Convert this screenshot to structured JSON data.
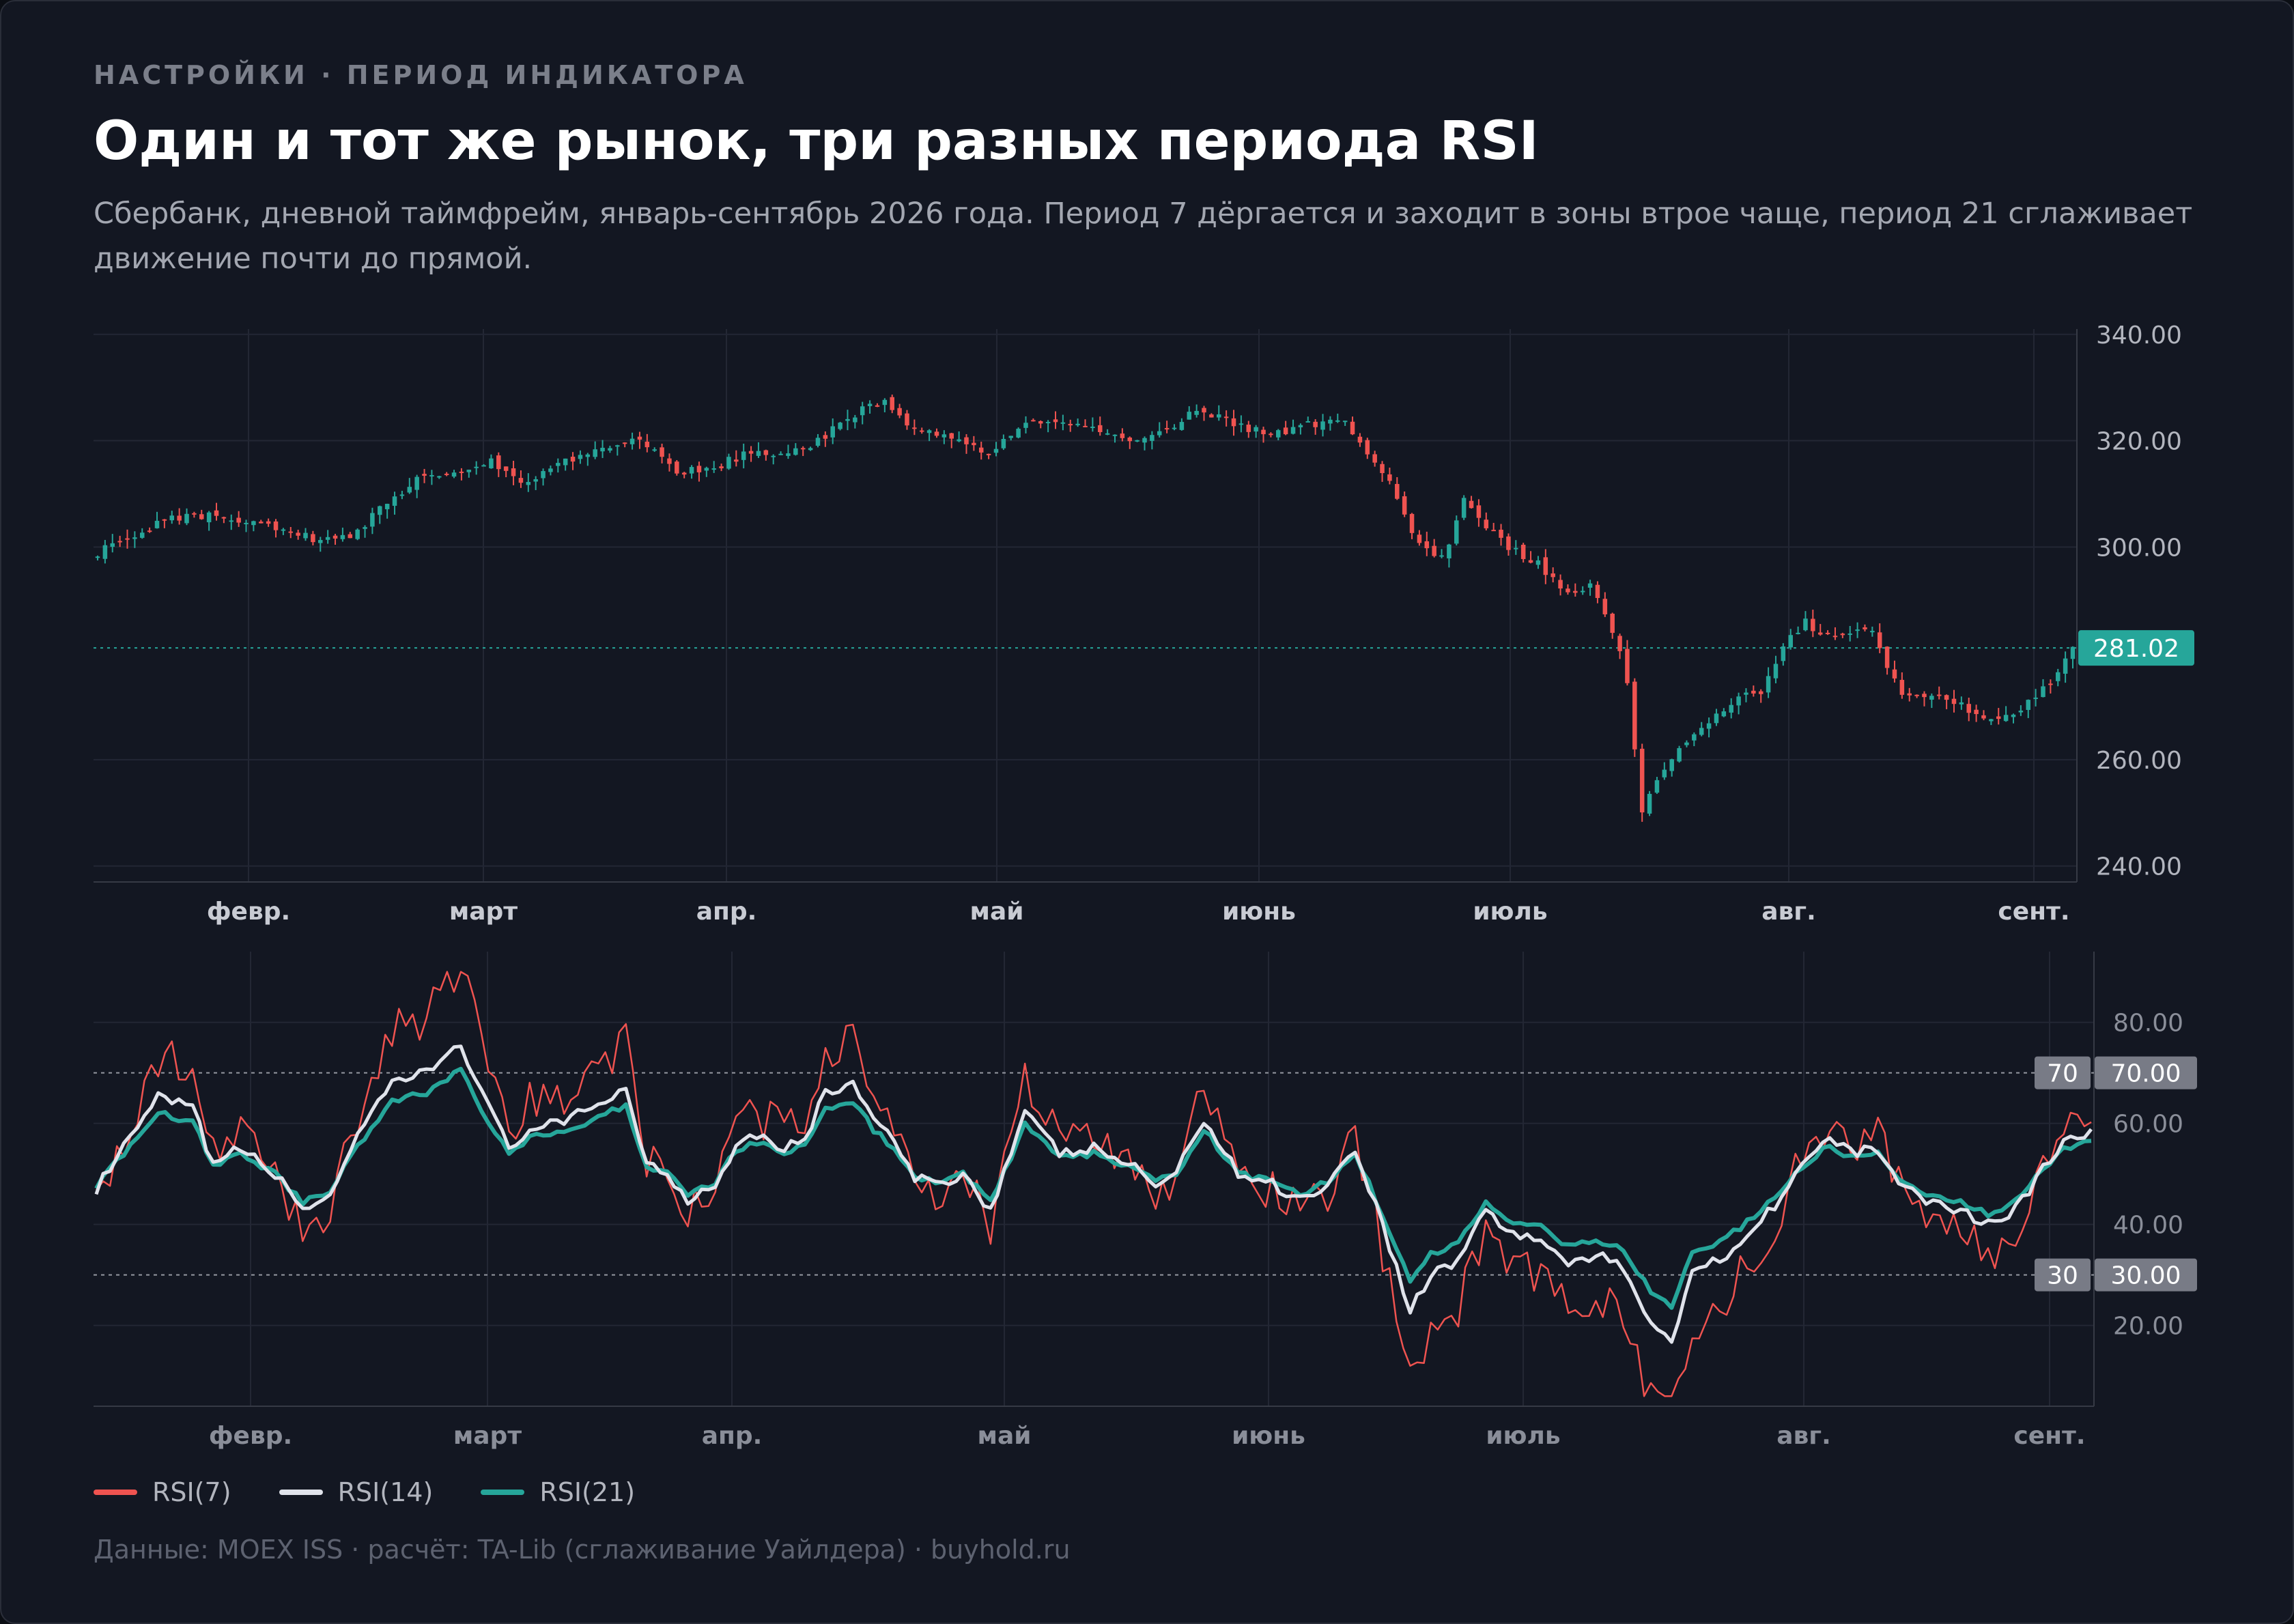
{
  "header": {
    "eyebrow": "НАСТРОЙКИ · ПЕРИОД ИНДИКАТОРА",
    "title": "Один и тот же рынок, три разных периода RSI",
    "subtitle": "Сбербанк, дневной таймфрейм, январь-сентябрь 2026 года. Период 7 дёргается и заходит в зоны втрое чаще, период 21 сглаживает движение почти до прямой."
  },
  "footer": "Данные: MOEX ISS · расчёт: TA-Lib (сглаживание Уайлдера) · buyhold.ru",
  "colors": {
    "background": "#131722",
    "up": "#26a69a",
    "down": "#ef5350",
    "grid": "#232734",
    "rsi7": "#ef5350",
    "rsi14": "#e0e3eb",
    "rsi21": "#26a69a"
  },
  "chart_data": [
    {
      "type": "candlestick",
      "x_ticks": [
        "февр.",
        "март",
        "апр.",
        "май",
        "июнь",
        "июль",
        "авг.",
        "сент."
      ],
      "y_ticks": [
        "340.00",
        "320.00",
        "300.00",
        "260.00",
        "240.00"
      ],
      "ylim": [
        237,
        341
      ],
      "last_price": "281.02",
      "price_anchors": [
        [
          0,
          299
        ],
        [
          5,
          302
        ],
        [
          9,
          305
        ],
        [
          14,
          306
        ],
        [
          20,
          305
        ],
        [
          26,
          303
        ],
        [
          30,
          301
        ],
        [
          34,
          302
        ],
        [
          38,
          307
        ],
        [
          43,
          313
        ],
        [
          48,
          314
        ],
        [
          53,
          316
        ],
        [
          58,
          312
        ],
        [
          63,
          316
        ],
        [
          68,
          318
        ],
        [
          73,
          320
        ],
        [
          78,
          314
        ],
        [
          83,
          315
        ],
        [
          88,
          318
        ],
        [
          93,
          317
        ],
        [
          98,
          321
        ],
        [
          103,
          326
        ],
        [
          106,
          327
        ],
        [
          110,
          322
        ],
        [
          115,
          320
        ],
        [
          120,
          318
        ],
        [
          125,
          324
        ],
        [
          130,
          324
        ],
        [
          135,
          322
        ],
        [
          140,
          320
        ],
        [
          145,
          322
        ],
        [
          148,
          326
        ],
        [
          153,
          323
        ],
        [
          158,
          321
        ],
        [
          163,
          323
        ],
        [
          168,
          324
        ],
        [
          171,
          318
        ],
        [
          174,
          312
        ],
        [
          177,
          303
        ],
        [
          180,
          298
        ],
        [
          182,
          300
        ],
        [
          184,
          310
        ],
        [
          186,
          305
        ],
        [
          190,
          300
        ],
        [
          194,
          297
        ],
        [
          198,
          291
        ],
        [
          201,
          293
        ],
        [
          203,
          288
        ],
        [
          205,
          280
        ],
        [
          206,
          275
        ],
        [
          208,
          250
        ],
        [
          210,
          256
        ],
        [
          213,
          262
        ],
        [
          216,
          266
        ],
        [
          220,
          271
        ],
        [
          224,
          273
        ],
        [
          226,
          278
        ],
        [
          228,
          283
        ],
        [
          230,
          286
        ],
        [
          232,
          283
        ],
        [
          236,
          284
        ],
        [
          239,
          284
        ],
        [
          241,
          277
        ],
        [
          243,
          272
        ],
        [
          247,
          272
        ],
        [
          251,
          270
        ],
        [
          255,
          268
        ],
        [
          259,
          269
        ],
        [
          261,
          272
        ],
        [
          263,
          275
        ],
        [
          265,
          279
        ],
        [
          266,
          281.02
        ]
      ],
      "n": 267
    },
    {
      "type": "line",
      "x_ticks": [
        "февр.",
        "март",
        "апр.",
        "май",
        "июнь",
        "июль",
        "авг.",
        "сент."
      ],
      "y_ticks": [
        "80.00",
        "60.00",
        "40.00",
        "20.00"
      ],
      "ylim": [
        4,
        94
      ],
      "levels": [
        {
          "label": "70",
          "value": "70.00"
        },
        {
          "label": "30",
          "value": "30.00"
        }
      ],
      "series": [
        {
          "name": "RSI(7)"
        },
        {
          "name": "RSI(14)"
        },
        {
          "name": "RSI(21)"
        }
      ],
      "rsi14_anchors": [
        [
          0,
          47
        ],
        [
          5,
          57
        ],
        [
          9,
          65
        ],
        [
          14,
          63
        ],
        [
          17,
          52
        ],
        [
          21,
          55
        ],
        [
          26,
          50
        ],
        [
          30,
          43
        ],
        [
          34,
          46
        ],
        [
          38,
          57
        ],
        [
          43,
          68
        ],
        [
          48,
          70
        ],
        [
          53,
          76
        ],
        [
          56,
          66
        ],
        [
          60,
          55
        ],
        [
          63,
          59
        ],
        [
          68,
          60
        ],
        [
          73,
          64
        ],
        [
          77,
          67
        ],
        [
          80,
          52
        ],
        [
          83,
          50
        ],
        [
          86,
          45
        ],
        [
          90,
          48
        ],
        [
          93,
          56
        ],
        [
          96,
          58
        ],
        [
          100,
          55
        ],
        [
          103,
          57
        ],
        [
          106,
          66
        ],
        [
          110,
          68
        ],
        [
          113,
          61
        ],
        [
          116,
          56
        ],
        [
          119,
          49
        ],
        [
          122,
          48
        ],
        [
          126,
          50
        ],
        [
          130,
          43
        ],
        [
          135,
          62
        ],
        [
          140,
          54
        ],
        [
          145,
          55
        ],
        [
          150,
          52
        ],
        [
          154,
          48
        ],
        [
          157,
          50
        ],
        [
          161,
          61
        ],
        [
          166,
          50
        ],
        [
          171,
          48
        ],
        [
          175,
          45
        ],
        [
          179,
          48
        ],
        [
          183,
          55
        ],
        [
          187,
          40
        ],
        [
          191,
          23
        ],
        [
          194,
          30
        ],
        [
          198,
          33
        ],
        [
          202,
          43
        ],
        [
          206,
          38
        ],
        [
          210,
          37
        ],
        [
          214,
          32
        ],
        [
          218,
          34
        ],
        [
          222,
          31
        ],
        [
          226,
          21
        ],
        [
          229,
          17
        ],
        [
          232,
          31
        ],
        [
          236,
          33
        ],
        [
          240,
          38
        ],
        [
          244,
          44
        ],
        [
          248,
          52
        ],
        [
          252,
          57
        ],
        [
          255,
          54
        ],
        [
          259,
          55
        ],
        [
          263,
          47
        ],
        [
          267,
          44
        ],
        [
          271,
          43
        ],
        [
          275,
          40
        ],
        [
          279,
          43
        ],
        [
          283,
          51
        ],
        [
          286,
          56
        ],
        [
          290,
          58
        ]
      ],
      "n": 291
    }
  ],
  "legend": [
    {
      "label": "RSI(7)",
      "color": "#ef5350"
    },
    {
      "label": "RSI(14)",
      "color": "#e0e3eb"
    },
    {
      "label": "RSI(21)",
      "color": "#26a69a"
    }
  ]
}
